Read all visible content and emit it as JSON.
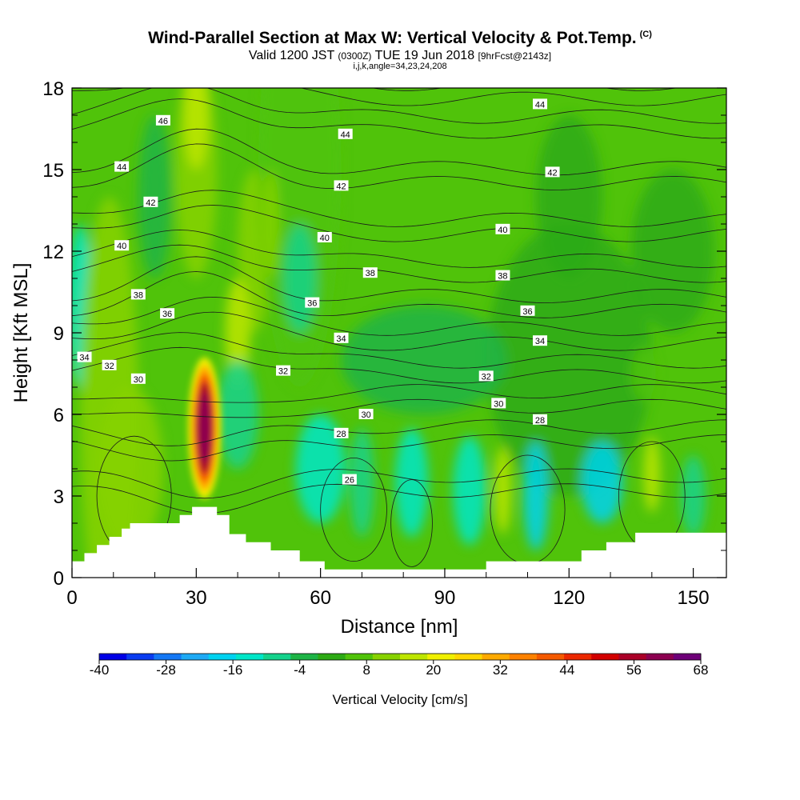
{
  "title": "Wind-Parallel Section at Max W: Vertical Velocity & Pot.Temp.",
  "title_mark": "(C)",
  "subtitle_main": "Valid 1200 JST",
  "subtitle_utc": "(0300Z)",
  "subtitle_date": "TUE 19 Jun 2018",
  "subtitle_fcst": "[9hrFcst@2143z]",
  "subtitle2": "i,j,k,angle=34,23,24,208",
  "colorbar": {
    "label": "Vertical Velocity [cm/s]",
    "tick_labels": [
      "-40",
      "-28",
      "-16",
      "-4",
      "8",
      "20",
      "32",
      "44",
      "56",
      "68"
    ],
    "colors": [
      "#0000e6",
      "#0a3cf0",
      "#1478f5",
      "#1eaaf5",
      "#00d2f0",
      "#00e6c8",
      "#14d28c",
      "#1eb446",
      "#2daa14",
      "#50c30a",
      "#87d200",
      "#bee600",
      "#f0f000",
      "#ffd700",
      "#ffaa00",
      "#ff8200",
      "#f55a00",
      "#eb2800",
      "#d20000",
      "#aa0028",
      "#8c0050",
      "#6e0078"
    ]
  },
  "chart_data": {
    "type": "heatmap",
    "xlabel": "Distance [nm]",
    "ylabel": "Height [Kft MSL]",
    "xlim": [
      0,
      158
    ],
    "ylim": [
      0,
      18
    ],
    "xticks": [
      "0",
      "30",
      "60",
      "90",
      "120",
      "150"
    ],
    "yticks": [
      "0",
      "3",
      "6",
      "9",
      "12",
      "15",
      "18"
    ],
    "w_units": "cm/s",
    "w_range": [
      -40,
      68
    ],
    "w_max": {
      "x": 32,
      "y": 5.5,
      "value": 64
    },
    "terrain": [
      [
        0,
        0.6
      ],
      [
        3,
        0.6
      ],
      [
        3,
        0.9
      ],
      [
        6,
        0.9
      ],
      [
        6,
        1.2
      ],
      [
        9,
        1.2
      ],
      [
        9,
        1.5
      ],
      [
        12,
        1.5
      ],
      [
        12,
        1.8
      ],
      [
        14,
        1.8
      ],
      [
        14,
        2.0
      ],
      [
        26,
        2.0
      ],
      [
        26,
        2.3
      ],
      [
        29,
        2.3
      ],
      [
        29,
        2.6
      ],
      [
        35,
        2.6
      ],
      [
        35,
        2.3
      ],
      [
        38,
        2.3
      ],
      [
        38,
        1.6
      ],
      [
        42,
        1.6
      ],
      [
        42,
        1.3
      ],
      [
        48,
        1.3
      ],
      [
        48,
        1.0
      ],
      [
        55,
        1.0
      ],
      [
        55,
        0.6
      ],
      [
        61,
        0.6
      ],
      [
        61,
        0.3
      ],
      [
        100,
        0.3
      ],
      [
        100,
        0.6
      ],
      [
        123,
        0.6
      ],
      [
        123,
        1.0
      ],
      [
        129,
        1.0
      ],
      [
        129,
        1.3
      ],
      [
        136,
        1.3
      ],
      [
        136,
        1.65
      ],
      [
        158,
        1.65
      ]
    ],
    "theta_levels": [
      26,
      28,
      30,
      32,
      34,
      36,
      38,
      40,
      42,
      44,
      46
    ],
    "theta_labels": [
      {
        "text": "46",
        "x": 22,
        "y": 16.8
      },
      {
        "text": "44",
        "x": 12,
        "y": 15.1
      },
      {
        "text": "44",
        "x": 66,
        "y": 16.3
      },
      {
        "text": "44",
        "x": 113,
        "y": 17.4
      },
      {
        "text": "42",
        "x": 19,
        "y": 13.8
      },
      {
        "text": "42",
        "x": 65,
        "y": 14.4
      },
      {
        "text": "42",
        "x": 116,
        "y": 14.9
      },
      {
        "text": "40",
        "x": 12,
        "y": 12.2
      },
      {
        "text": "40",
        "x": 61,
        "y": 12.5
      },
      {
        "text": "40",
        "x": 104,
        "y": 12.8
      },
      {
        "text": "38",
        "x": 16,
        "y": 10.4
      },
      {
        "text": "38",
        "x": 72,
        "y": 11.2
      },
      {
        "text": "38",
        "x": 104,
        "y": 11.1
      },
      {
        "text": "36",
        "x": 23,
        "y": 9.7
      },
      {
        "text": "36",
        "x": 58,
        "y": 10.1
      },
      {
        "text": "36",
        "x": 110,
        "y": 9.8
      },
      {
        "text": "34",
        "x": 3,
        "y": 8.1
      },
      {
        "text": "34",
        "x": 65,
        "y": 8.8
      },
      {
        "text": "34",
        "x": 113,
        "y": 8.7
      },
      {
        "text": "32",
        "x": 9,
        "y": 7.8
      },
      {
        "text": "32",
        "x": 51,
        "y": 7.6
      },
      {
        "text": "32",
        "x": 100,
        "y": 7.4
      },
      {
        "text": "30",
        "x": 16,
        "y": 7.3
      },
      {
        "text": "30",
        "x": 71,
        "y": 6.0
      },
      {
        "text": "30",
        "x": 103,
        "y": 6.4
      },
      {
        "text": "28",
        "x": 65,
        "y": 5.3
      },
      {
        "text": "28",
        "x": 113,
        "y": 5.8
      },
      {
        "text": "26",
        "x": 67,
        "y": 3.6
      }
    ],
    "grid": false
  }
}
